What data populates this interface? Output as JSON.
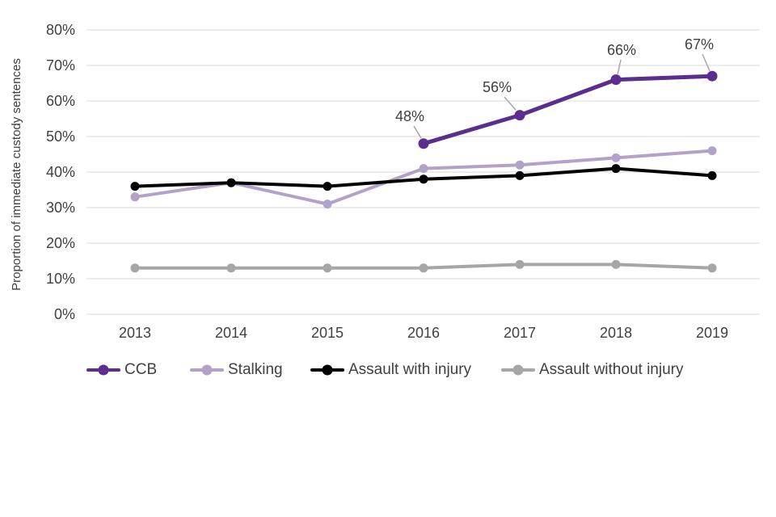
{
  "chart_data": {
    "type": "line",
    "title": "",
    "ylabel": "Proportion of immediate custody sentences",
    "xlabel": "",
    "categories": [
      "2013",
      "2014",
      "2015",
      "2016",
      "2017",
      "2018",
      "2019"
    ],
    "yticks": [
      "0%",
      "10%",
      "20%",
      "30%",
      "40%",
      "50%",
      "60%",
      "70%",
      "80%"
    ],
    "ylim": [
      0,
      80
    ],
    "grid": "horizontal",
    "legend_position": "bottom",
    "series": [
      {
        "name": "CCB",
        "color": "#5b2d8e",
        "values": [
          null,
          null,
          null,
          48,
          56,
          66,
          67
        ]
      },
      {
        "name": "Stalking",
        "color": "#b3a2c8",
        "values": [
          33,
          37,
          31,
          41,
          42,
          44,
          46
        ]
      },
      {
        "name": "Assault with injury",
        "color": "#000000",
        "values": [
          36,
          37,
          36,
          38,
          39,
          41,
          39
        ]
      },
      {
        "name": "Assault without injury",
        "color": "#a6a6a6",
        "values": [
          13,
          13,
          13,
          13,
          14,
          14,
          13
        ]
      }
    ],
    "annotations": [
      {
        "series": "CCB",
        "category": "2016",
        "text": "48%"
      },
      {
        "series": "CCB",
        "category": "2017",
        "text": "56%"
      },
      {
        "series": "CCB",
        "category": "2018",
        "text": "66%"
      },
      {
        "series": "CCB",
        "category": "2019",
        "text": "67%"
      }
    ],
    "colors": {
      "gridline": "#d9d9d9",
      "axis_text": "#404040",
      "annotation_text": "#404040",
      "leader_line": "#a6a6a6",
      "background": "#ffffff"
    }
  }
}
